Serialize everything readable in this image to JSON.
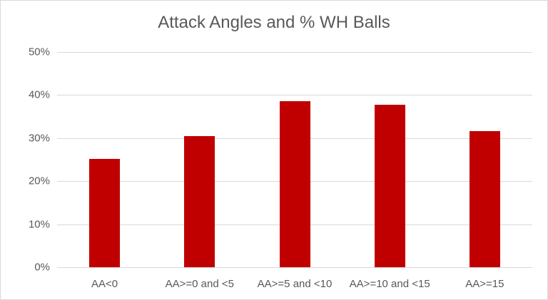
{
  "chart_data": {
    "type": "bar",
    "title": "Attack Angles and % WH Balls",
    "xlabel": "",
    "ylabel": "",
    "categories": [
      "AA<0",
      "AA>=0 and <5",
      "AA>=5 and <10",
      "AA>=10 and <15",
      "AA>=15"
    ],
    "values": [
      25.2,
      30.5,
      38.6,
      37.7,
      31.6
    ],
    "value_format": "percent",
    "ylim": [
      0,
      50
    ],
    "yticks": [
      "0%",
      "10%",
      "20%",
      "30%",
      "40%",
      "50%"
    ],
    "grid": true,
    "legend": null,
    "bar_color": "#c00000"
  },
  "labels": {
    "title": "Attack Angles and % WH Balls",
    "yticks": [
      "0%",
      "10%",
      "20%",
      "30%",
      "40%",
      "50%"
    ],
    "categories": [
      "AA<0",
      "AA>=0 and <5",
      "AA>=5 and <10",
      "AA>=10 and <15",
      "AA>=15"
    ]
  }
}
